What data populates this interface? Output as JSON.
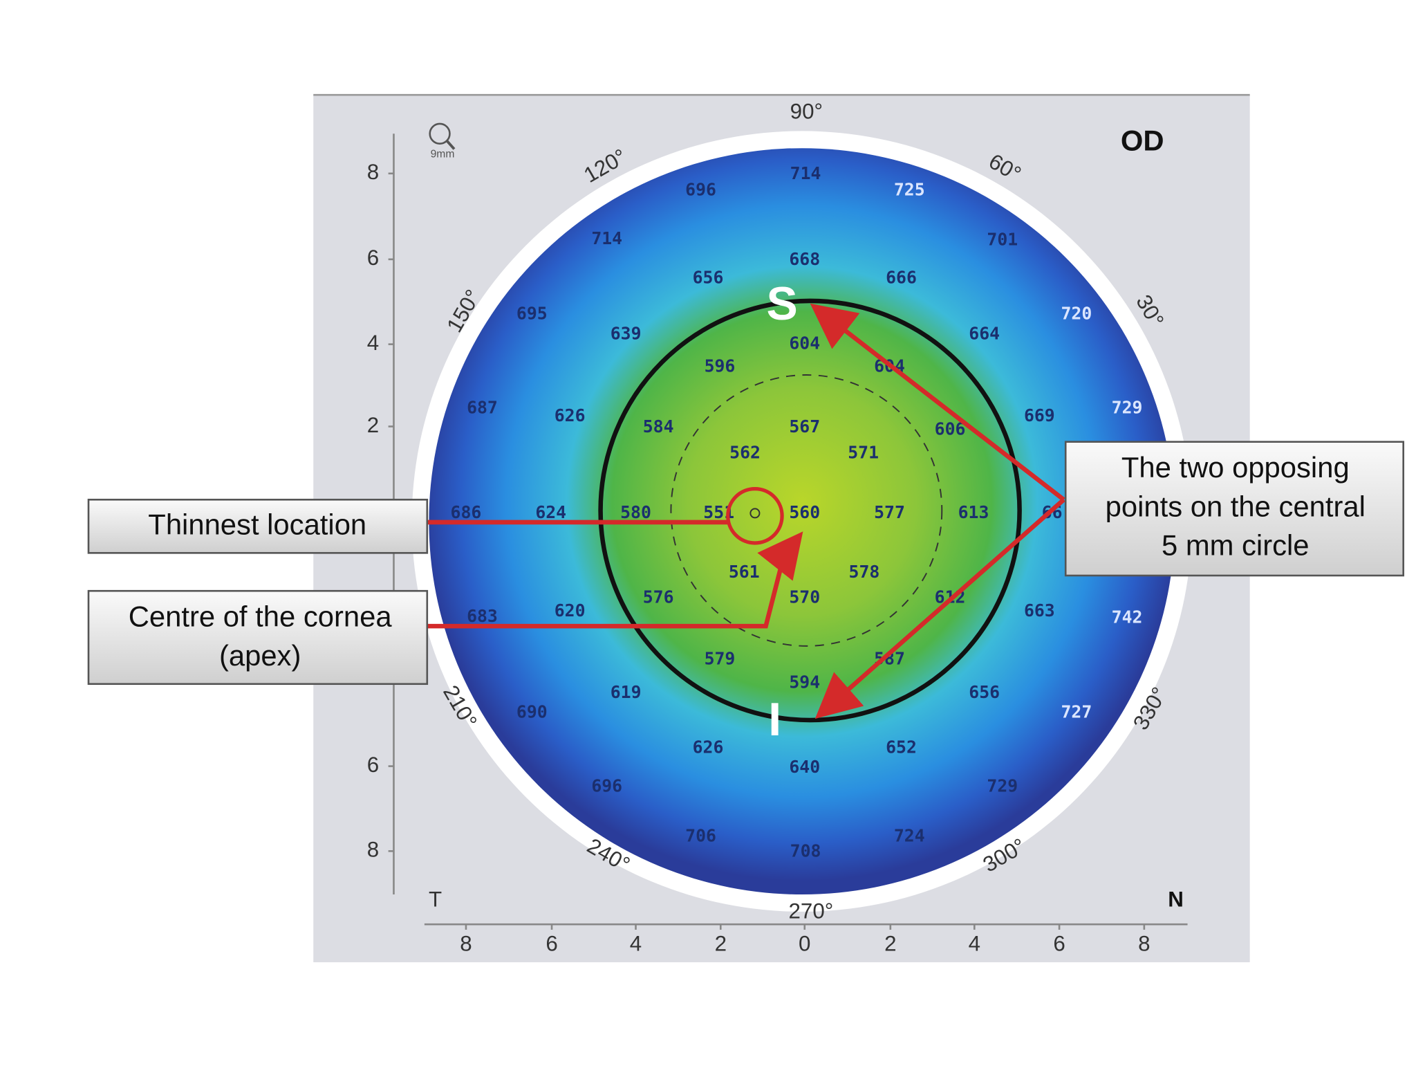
{
  "header": {
    "eye": "OD",
    "zoom": "9mm"
  },
  "orientation": {
    "temporal": "T",
    "nasal": "N",
    "superior": "S",
    "inferior": "I"
  },
  "angle_labels": [
    "90°",
    "120°",
    "60°",
    "150°",
    "30°",
    "210°",
    "330°",
    "240°",
    "300°",
    "270°"
  ],
  "vertical_scale": [
    "8",
    "6",
    "4",
    "2",
    "6",
    "8"
  ],
  "horizontal_scale": [
    "8",
    "6",
    "4",
    "2",
    "0",
    "2",
    "4",
    "6",
    "8"
  ],
  "thickness_values": [
    "714",
    "725",
    "696",
    "714",
    "701",
    "668",
    "656",
    "666",
    "695",
    "720",
    "639",
    "604",
    "664",
    "596",
    "604",
    "687",
    "626",
    "584",
    "567",
    "606",
    "669",
    "729",
    "562",
    "571",
    "686",
    "624",
    "580",
    "551",
    "560",
    "577",
    "613",
    "66",
    "561",
    "578",
    "683",
    "620",
    "576",
    "570",
    "612",
    "663",
    "742",
    "579",
    "587",
    "594",
    "619",
    "656",
    "690",
    "727",
    "626",
    "640",
    "652",
    "696",
    "729",
    "706",
    "724",
    "708"
  ],
  "callouts": {
    "thinnest": "Thinnest location",
    "apex": [
      "Centre of the cornea",
      "(apex)"
    ],
    "opposing": [
      "The two opposing",
      "points on the central",
      "5 mm circle"
    ]
  }
}
